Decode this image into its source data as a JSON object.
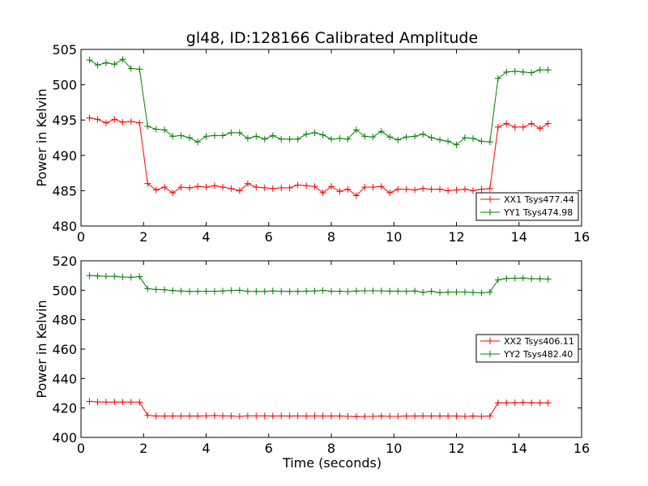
{
  "chart_data": [
    {
      "type": "line",
      "title": "gl48, ID:128166 Calibrated Amplitude",
      "xlabel": "",
      "ylabel": "Power in Kelvin",
      "xlim": [
        0,
        16
      ],
      "ylim": [
        480,
        505
      ],
      "xticks": [
        "0",
        "2",
        "4",
        "6",
        "8",
        "10",
        "12",
        "14",
        "16"
      ],
      "yticks": [
        "480",
        "485",
        "490",
        "495",
        "500",
        "505"
      ],
      "grid": false,
      "legend_position": "bottom-right",
      "x": [
        0.27,
        0.53,
        0.8,
        1.07,
        1.33,
        1.6,
        1.87,
        2.13,
        2.4,
        2.67,
        2.93,
        3.2,
        3.47,
        3.73,
        4.0,
        4.27,
        4.53,
        4.8,
        5.07,
        5.33,
        5.6,
        5.87,
        6.13,
        6.4,
        6.67,
        6.93,
        7.2,
        7.47,
        7.73,
        8.0,
        8.27,
        8.53,
        8.8,
        9.07,
        9.33,
        9.6,
        9.87,
        10.13,
        10.4,
        10.67,
        10.93,
        11.2,
        11.47,
        11.73,
        12.0,
        12.27,
        12.53,
        12.8,
        13.07,
        13.33,
        13.6,
        13.87,
        14.13,
        14.4,
        14.67,
        14.93
      ],
      "series": [
        {
          "name": "XX1 Tsys477.44",
          "color": "#ff0000",
          "values": [
            495.3,
            495.1,
            494.6,
            495.1,
            494.7,
            494.8,
            494.6,
            486.0,
            485.1,
            485.5,
            484.7,
            485.5,
            485.4,
            485.6,
            485.5,
            485.7,
            485.5,
            485.3,
            485.0,
            486.0,
            485.5,
            485.4,
            485.3,
            485.4,
            485.4,
            485.8,
            485.7,
            485.6,
            484.7,
            485.6,
            484.9,
            485.2,
            484.3,
            485.5,
            485.5,
            485.6,
            484.7,
            485.2,
            485.2,
            485.1,
            485.3,
            485.2,
            485.2,
            485.0,
            485.1,
            485.2,
            485.0,
            485.2,
            485.3,
            494.0,
            494.5,
            494.0,
            494.0,
            494.5,
            493.8,
            494.5
          ]
        },
        {
          "name": "YY1 Tsys474.98",
          "color": "#008000",
          "values": [
            503.5,
            502.8,
            503.1,
            502.9,
            503.6,
            502.3,
            502.2,
            494.1,
            493.7,
            493.6,
            492.7,
            492.8,
            492.5,
            491.9,
            492.7,
            492.8,
            492.8,
            493.2,
            493.2,
            492.4,
            492.7,
            492.3,
            492.8,
            492.3,
            492.3,
            492.3,
            493.0,
            493.2,
            492.9,
            492.3,
            492.4,
            492.3,
            493.6,
            492.7,
            492.6,
            493.4,
            492.6,
            492.2,
            492.6,
            492.7,
            493.0,
            492.5,
            492.2,
            492.0,
            491.5,
            492.5,
            492.4,
            492.0,
            491.9,
            500.9,
            501.8,
            501.9,
            501.8,
            501.7,
            502.1,
            502.1
          ]
        }
      ]
    },
    {
      "type": "line",
      "title": "",
      "xlabel": "Time (seconds)",
      "ylabel": "Power in Kelvin",
      "xlim": [
        0,
        16
      ],
      "ylim": [
        400,
        520
      ],
      "xticks": [
        "0",
        "2",
        "4",
        "6",
        "8",
        "10",
        "12",
        "14",
        "16"
      ],
      "yticks": [
        "400",
        "420",
        "440",
        "460",
        "480",
        "500",
        "520"
      ],
      "grid": false,
      "legend_position": "center-right",
      "x": [
        0.27,
        0.53,
        0.8,
        1.07,
        1.33,
        1.6,
        1.87,
        2.13,
        2.4,
        2.67,
        2.93,
        3.2,
        3.47,
        3.73,
        4.0,
        4.27,
        4.53,
        4.8,
        5.07,
        5.33,
        5.6,
        5.87,
        6.13,
        6.4,
        6.67,
        6.93,
        7.2,
        7.47,
        7.73,
        8.0,
        8.27,
        8.53,
        8.8,
        9.07,
        9.33,
        9.6,
        9.87,
        10.13,
        10.4,
        10.67,
        10.93,
        11.2,
        11.47,
        11.73,
        12.0,
        12.27,
        12.53,
        12.8,
        13.07,
        13.33,
        13.6,
        13.87,
        14.13,
        14.4,
        14.67,
        14.93
      ],
      "series": [
        {
          "name": "XX2 Tsys406.11",
          "color": "#ff0000",
          "values": [
            424.5,
            424.1,
            424.0,
            424.0,
            424.0,
            424.0,
            424.0,
            415.0,
            414.5,
            414.5,
            414.5,
            414.5,
            414.5,
            414.5,
            414.6,
            414.8,
            414.6,
            414.5,
            414.3,
            414.6,
            414.6,
            414.6,
            414.5,
            414.6,
            414.5,
            414.6,
            414.5,
            414.6,
            414.5,
            414.5,
            414.5,
            414.3,
            414.2,
            414.3,
            414.3,
            414.5,
            414.3,
            414.3,
            414.5,
            414.5,
            414.6,
            414.5,
            414.5,
            414.5,
            414.5,
            414.3,
            414.5,
            414.3,
            414.5,
            423.5,
            423.5,
            423.5,
            423.8,
            423.5,
            423.5,
            423.5
          ]
        },
        {
          "name": "YY2 Tsys482.40",
          "color": "#008000",
          "values": [
            510.0,
            509.7,
            509.5,
            509.5,
            509.0,
            508.8,
            509.3,
            501.0,
            500.5,
            500.3,
            499.8,
            499.5,
            499.2,
            499.2,
            499.3,
            499.3,
            499.5,
            499.9,
            500.0,
            499.3,
            499.2,
            499.2,
            499.5,
            499.3,
            499.2,
            499.2,
            499.4,
            499.5,
            499.9,
            499.3,
            499.3,
            499.1,
            499.5,
            499.6,
            499.6,
            499.6,
            499.4,
            499.4,
            499.3,
            499.5,
            498.6,
            499.3,
            498.4,
            498.7,
            498.8,
            498.8,
            498.5,
            498.2,
            498.7,
            507.0,
            508.0,
            508.2,
            508.3,
            507.8,
            507.8,
            507.6
          ]
        }
      ]
    }
  ]
}
